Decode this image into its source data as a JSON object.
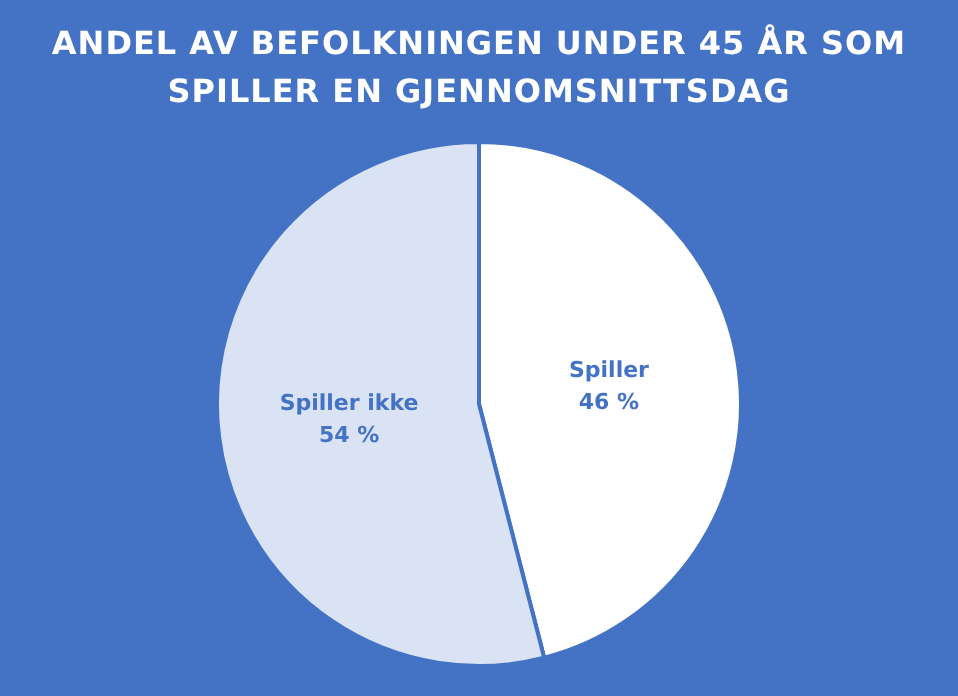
{
  "chart_data": {
    "type": "pie",
    "title": "ANDEL AV BEFOLKNINGEN UNDER 45 ÅR SOM SPILLER EN GJENNOMSNITTSDAG",
    "categories": [
      "Spiller",
      "Spiller ikke"
    ],
    "values": [
      46,
      54
    ],
    "colors": [
      "#ffffff",
      "#dae3f3"
    ],
    "value_labels": [
      "46 %",
      "54 %"
    ],
    "legend": false
  }
}
